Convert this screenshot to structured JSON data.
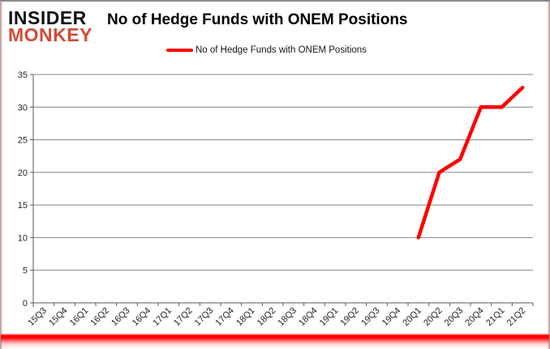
{
  "logo": {
    "line1": "INSIDER",
    "line2": "MONKEY"
  },
  "header": {
    "title": "No of Hedge Funds with ONEM Positions"
  },
  "legend": {
    "label": "No of Hedge Funds with ONEM Positions",
    "swatch_color": "#FF0000"
  },
  "colors": {
    "series_red": "#FF0000",
    "logo_red": "#D34A34",
    "gridline": "#848484",
    "axis_line": "#595959",
    "axis_text": "#1F1F1F"
  },
  "chart_data": {
    "type": "line",
    "title": "No of Hedge Funds with ONEM Positions",
    "categories": [
      "15Q3",
      "15Q4",
      "16Q1",
      "16Q2",
      "16Q3",
      "16Q4",
      "17Q1",
      "17Q2",
      "17Q3",
      "17Q4",
      "18Q1",
      "18Q2",
      "18Q3",
      "18Q4",
      "19Q1",
      "19Q2",
      "19Q3",
      "19Q4",
      "20Q1",
      "20Q2",
      "20Q3",
      "20Q4",
      "21Q1",
      "21Q2"
    ],
    "series": [
      {
        "name": "No of Hedge Funds with ONEM Positions",
        "color": "#FF0000",
        "values": [
          null,
          null,
          null,
          null,
          null,
          null,
          null,
          null,
          null,
          null,
          null,
          null,
          null,
          null,
          null,
          null,
          null,
          null,
          10,
          20,
          22,
          30,
          30,
          33
        ]
      }
    ],
    "xlabel": "",
    "ylabel": "",
    "ylim": [
      0,
      35
    ],
    "ytick_step": 5,
    "grid": true,
    "legend_position": "top"
  }
}
